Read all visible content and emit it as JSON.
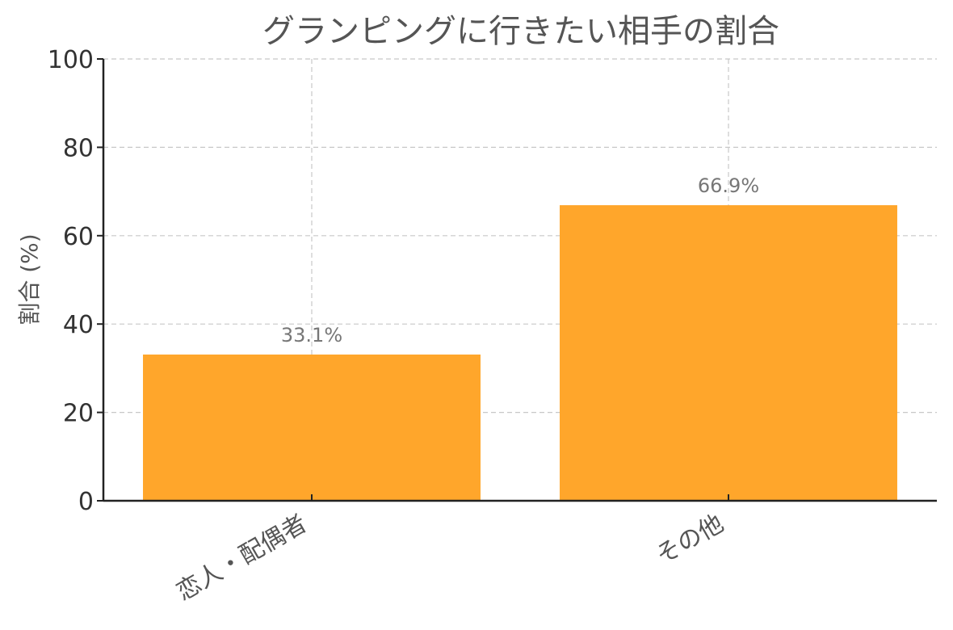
{
  "chart_data": {
    "type": "bar",
    "title": "グランピングに行きたい相手の割合",
    "xlabel": "",
    "ylabel": "割合 (%)",
    "categories": [
      "恋人・配偶者",
      "その他"
    ],
    "values": [
      33.1,
      66.9
    ],
    "value_labels": [
      "33.1%",
      "66.9%"
    ],
    "ylim": [
      0,
      100
    ],
    "yticks": [
      0,
      20,
      40,
      60,
      80,
      100
    ],
    "ytick_labels": [
      "0",
      "20",
      "40",
      "60",
      "80",
      "100"
    ],
    "grid": true,
    "bar_color": "#FFA62B"
  }
}
